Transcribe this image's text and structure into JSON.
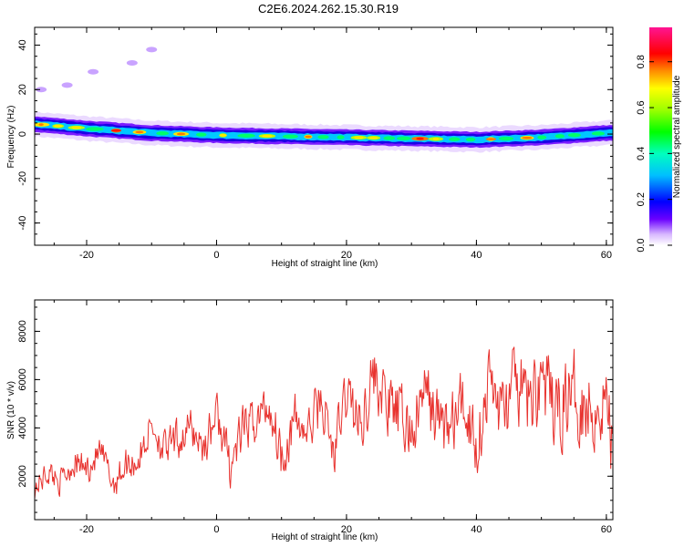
{
  "chart_data": [
    {
      "type": "heatmap",
      "title": "C2E6.2024.262.15.30.R19",
      "xlabel": "Height of straight line (km)",
      "ylabel": "Frequency (Hz)",
      "xlim": [
        -28,
        61
      ],
      "ylim": [
        -50,
        48
      ],
      "xticks": [
        -20,
        0,
        20,
        40,
        60
      ],
      "yticks": [
        -40,
        -20,
        0,
        20,
        40
      ],
      "colorbar": {
        "label": "Normalized spectral amplitude",
        "range": [
          0,
          0.95
        ],
        "ticks": [
          0.0,
          0.2,
          0.4,
          0.6,
          0.8
        ]
      },
      "ridge": {
        "description_points_x": [
          -28,
          -20,
          -10,
          0,
          10,
          20,
          30,
          40,
          50,
          60
        ],
        "frequency": [
          4.5,
          2.5,
          0.5,
          -0.5,
          -1.0,
          -1.5,
          -2.0,
          -2.5,
          -1.5,
          0.5
        ]
      },
      "grid": false
    },
    {
      "type": "line",
      "title": "",
      "xlabel": "Height of straight line (km)",
      "ylabel": "SNR (10 * v/v)",
      "xlim": [
        -28,
        61
      ],
      "ylim": [
        200,
        9300
      ],
      "xticks": [
        -20,
        0,
        20,
        40,
        60
      ],
      "yticks": [
        2000,
        4000,
        6000,
        8000
      ],
      "color": "#e8332f",
      "series": [
        {
          "x": [
            -28,
            -26,
            -24,
            -22,
            -20,
            -18,
            -16,
            -14,
            -12,
            -10,
            -8,
            -6,
            -4,
            -2,
            0,
            2,
            4,
            6,
            8,
            10,
            12,
            14,
            16,
            18,
            20,
            22,
            24,
            26,
            28,
            30,
            32,
            34,
            36,
            38,
            40,
            42,
            44,
            46,
            48,
            50,
            52,
            54,
            56,
            58,
            60,
            61
          ],
          "y": [
            1500,
            2200,
            1800,
            2600,
            2300,
            3000,
            1700,
            2500,
            2700,
            4200,
            3000,
            3500,
            4000,
            3200,
            4600,
            2400,
            3900,
            4300,
            5000,
            2900,
            4300,
            3700,
            5300,
            2800,
            5600,
            4000,
            6300,
            5000,
            4500,
            3800,
            5500,
            4300,
            4000,
            5000,
            3400,
            6000,
            4600,
            5800,
            5000,
            6200,
            4400,
            5500,
            5200,
            4800,
            5300,
            2600
          ]
        }
      ],
      "grid": false
    }
  ]
}
